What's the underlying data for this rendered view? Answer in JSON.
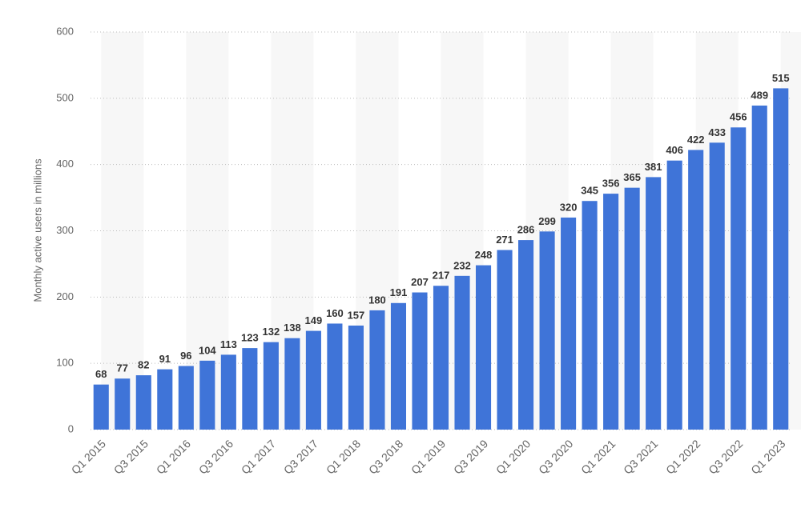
{
  "chart_data": {
    "type": "bar",
    "ylabel": "Monthly active users in millions",
    "categories": [
      "Q1 2015",
      null,
      "Q3 2015",
      null,
      "Q1 2016",
      null,
      "Q3 2016",
      null,
      "Q1 2017",
      null,
      "Q3 2017",
      null,
      "Q1 2018",
      null,
      "Q3 2018",
      null,
      "Q1 2019",
      null,
      "Q3 2019",
      null,
      "Q1 2020",
      null,
      "Q3 2020",
      null,
      "Q1 2021",
      null,
      "Q3 2021",
      null,
      "Q1 2022",
      null,
      "Q3 2022",
      null,
      "Q1 2023"
    ],
    "values": [
      68,
      77,
      82,
      91,
      96,
      104,
      113,
      123,
      132,
      138,
      149,
      160,
      157,
      180,
      191,
      207,
      217,
      232,
      248,
      271,
      286,
      299,
      320,
      345,
      356,
      365,
      381,
      406,
      422,
      433,
      456,
      489,
      515
    ],
    "color": "#3f74d8",
    "ylim": [
      0,
      600
    ],
    "yticks": [
      0,
      100,
      200,
      300,
      400,
      500,
      600
    ],
    "grid": true
  }
}
